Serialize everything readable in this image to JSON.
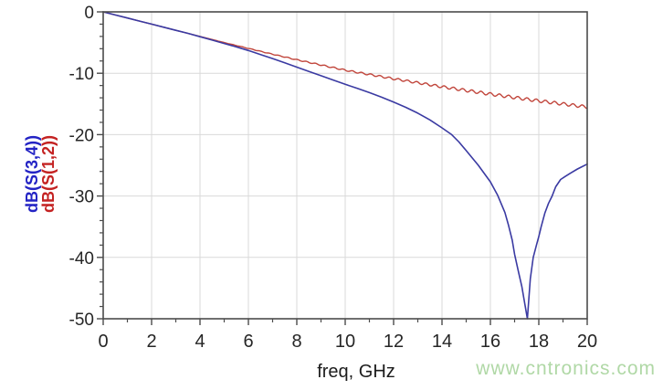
{
  "watermark": {
    "text": "www.cntronics.com",
    "color": "#b0d8a6"
  },
  "axes_style": {
    "border_color": "#4b4b4b",
    "grid_color": "#d9d9d9",
    "tick_label_color": "#262626",
    "blue_label_color": "#2323c4",
    "red_label_color": "#c42222"
  },
  "chart_data": {
    "type": "line",
    "title": "",
    "xlabel": "freq, GHz",
    "ylabel_blue": "dB(S(3,4))",
    "ylabel_red": "dB(S(1,2))",
    "xlim": [
      0,
      20
    ],
    "ylim": [
      -50,
      0
    ],
    "x_major_ticks": [
      0,
      2,
      4,
      6,
      8,
      10,
      12,
      14,
      16,
      18,
      20
    ],
    "x_minor_ticks": [
      1,
      3,
      5,
      7,
      9,
      11,
      13,
      15,
      17,
      19
    ],
    "y_major_ticks": [
      0,
      -10,
      -20,
      -30,
      -40,
      -50
    ],
    "y_minor_step": 2,
    "grid": "major",
    "legend_position": "rotated-left-axis",
    "notch": {
      "series": "dB(S(3,4))",
      "freq_ghz": 17.5,
      "depth_db": -50,
      "clipped_at_axis": true
    },
    "series": [
      {
        "name": "dB(S(3,4))",
        "color": "#3a3aa2",
        "style": "smooth line with deep null at 17.5 GHz",
        "points": [
          [
            0,
            0
          ],
          [
            0.5,
            -0.5
          ],
          [
            1,
            -1.0
          ],
          [
            1.5,
            -1.5
          ],
          [
            2,
            -2.0
          ],
          [
            2.5,
            -2.5
          ],
          [
            3,
            -3.0
          ],
          [
            3.5,
            -3.5
          ],
          [
            4,
            -4.05
          ],
          [
            4.5,
            -4.6
          ],
          [
            5,
            -5.15
          ],
          [
            5.5,
            -5.7
          ],
          [
            6,
            -6.3
          ],
          [
            6.5,
            -6.95
          ],
          [
            7,
            -7.6
          ],
          [
            7.5,
            -8.3
          ],
          [
            8,
            -9.0
          ],
          [
            8.5,
            -9.7
          ],
          [
            9,
            -10.4
          ],
          [
            9.5,
            -11.1
          ],
          [
            10,
            -11.8
          ],
          [
            10.5,
            -12.45
          ],
          [
            11,
            -13.15
          ],
          [
            11.5,
            -13.9
          ],
          [
            12,
            -14.7
          ],
          [
            12.5,
            -15.55
          ],
          [
            13,
            -16.5
          ],
          [
            13.5,
            -17.6
          ],
          [
            14,
            -18.9
          ],
          [
            14.4,
            -20.0
          ],
          [
            14.7,
            -21.2
          ],
          [
            15,
            -22.6
          ],
          [
            15.5,
            -25.0
          ],
          [
            16,
            -27.7
          ],
          [
            16.3,
            -29.9
          ],
          [
            16.6,
            -32.7
          ],
          [
            16.75,
            -34.8
          ],
          [
            16.9,
            -37.2
          ],
          [
            17,
            -39.5
          ],
          [
            17.15,
            -42.2
          ],
          [
            17.3,
            -44.8
          ],
          [
            17.42,
            -47.5
          ],
          [
            17.53,
            -50
          ],
          [
            17.65,
            -43.5
          ],
          [
            17.77,
            -40
          ],
          [
            17.9,
            -38
          ],
          [
            18,
            -36.6
          ],
          [
            18.1,
            -35
          ],
          [
            18.25,
            -32.8
          ],
          [
            18.4,
            -31.2
          ],
          [
            18.55,
            -30
          ],
          [
            18.7,
            -28.5
          ],
          [
            18.9,
            -27.3
          ],
          [
            19.1,
            -26.8
          ],
          [
            19.3,
            -26.3
          ],
          [
            19.6,
            -25.6
          ],
          [
            20,
            -24.8
          ]
        ]
      },
      {
        "name": "dB(S(1,2))",
        "color": "#c1463c",
        "style": "near-linear rolloff with small ripple",
        "base_points": [
          [
            0,
            0
          ],
          [
            1,
            -1.0
          ],
          [
            2,
            -2.0
          ],
          [
            3,
            -3.0
          ],
          [
            4,
            -4.0
          ],
          [
            5,
            -5.0
          ],
          [
            6,
            -5.95
          ],
          [
            7,
            -6.9
          ],
          [
            8,
            -7.8
          ],
          [
            9,
            -8.65
          ],
          [
            10,
            -9.5
          ],
          [
            11,
            -10.2
          ],
          [
            12,
            -10.9
          ],
          [
            13,
            -11.55
          ],
          [
            14,
            -12.2
          ],
          [
            15,
            -12.8
          ],
          [
            16,
            -13.4
          ],
          [
            17,
            -13.95
          ],
          [
            18,
            -14.5
          ],
          [
            19,
            -15.0
          ],
          [
            20,
            -15.5
          ]
        ],
        "ripple": {
          "period_ghz": 0.38,
          "start_ghz": 4.5,
          "amp_db_per_ghz": 0.022,
          "amp_max_db": 0.25
        }
      }
    ]
  }
}
